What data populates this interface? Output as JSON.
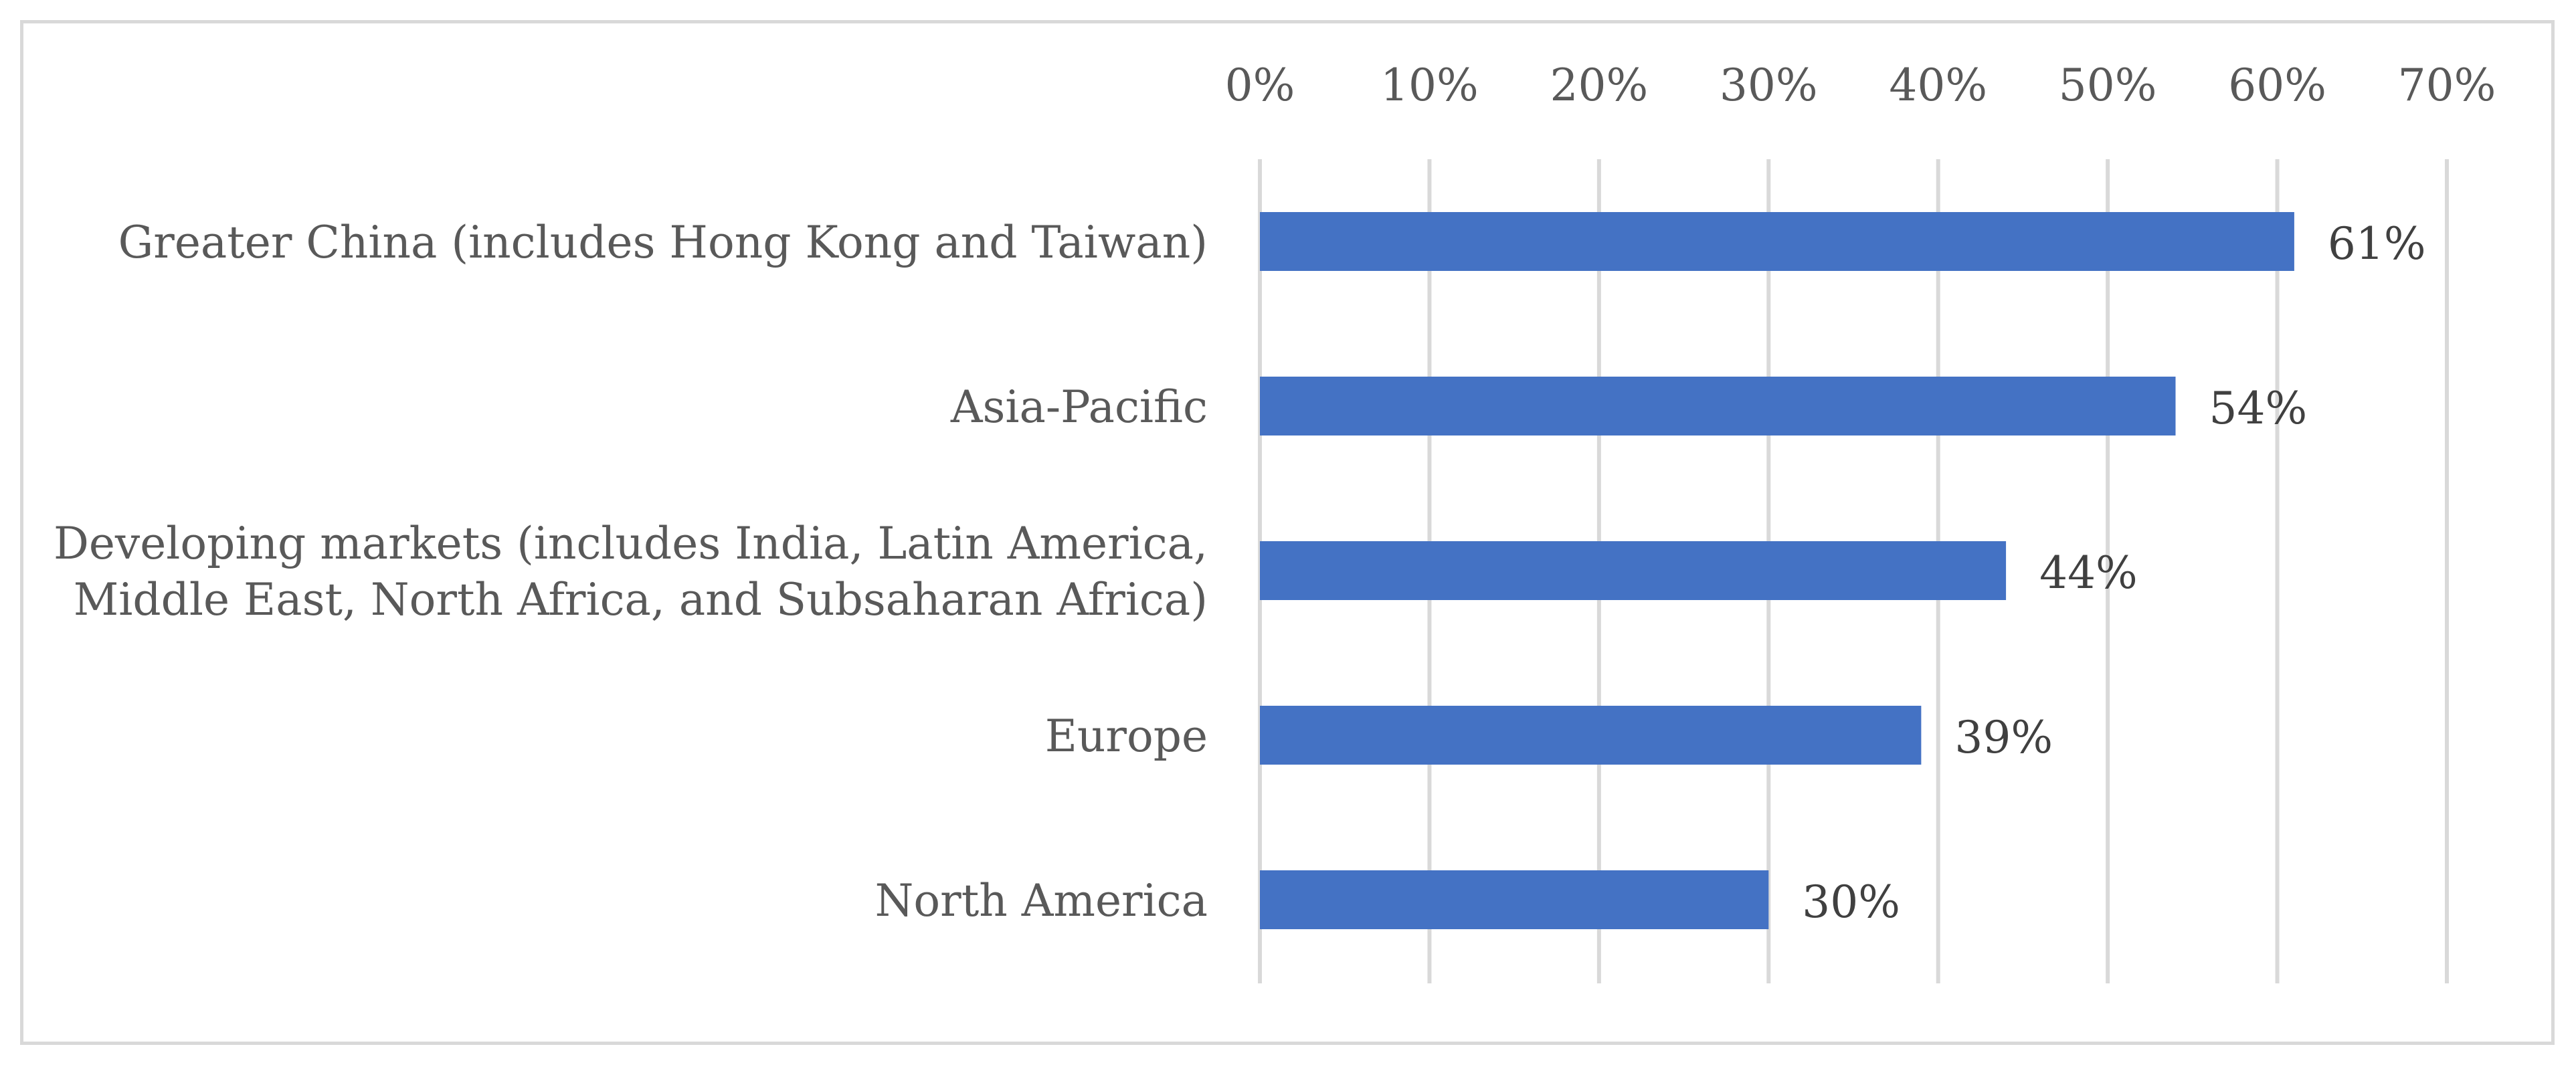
{
  "chart_data": {
    "type": "bar",
    "orientation": "horizontal",
    "categories": [
      [
        "Greater China (includes Hong Kong and Taiwan)"
      ],
      [
        "Asia-Pacific"
      ],
      [
        "Developing markets (includes India, Latin America,",
        "Middle East, North Africa, and Subsaharan Africa)"
      ],
      [
        "Europe"
      ],
      [
        "North America"
      ]
    ],
    "values": [
      61,
      54,
      44,
      39,
      30
    ],
    "value_labels": [
      "61%",
      "54%",
      "44%",
      "39%",
      "30%"
    ],
    "x_ticks": [
      0,
      10,
      20,
      30,
      40,
      50,
      60,
      70
    ],
    "x_tick_labels": [
      "0%",
      "10%",
      "20%",
      "30%",
      "40%",
      "50%",
      "60%",
      "70%"
    ],
    "xlim": [
      0,
      70
    ],
    "x_axis_position": "top",
    "grid": true,
    "legend": "none",
    "title": "",
    "xlabel": "",
    "ylabel": "",
    "colors": {
      "bar": "#4472c4",
      "grid": "#d9d9d9",
      "text": "#595959",
      "frame": "#d9d9d9"
    }
  }
}
